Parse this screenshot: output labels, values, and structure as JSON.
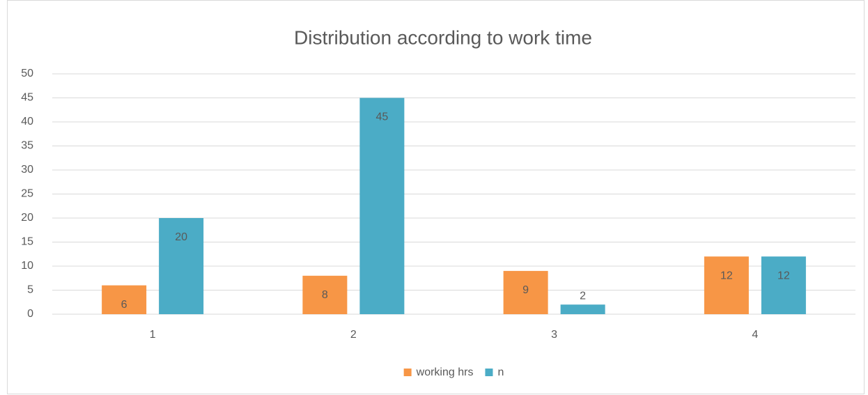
{
  "chart_data": {
    "type": "bar",
    "title": "Distribution according to work time",
    "categories": [
      "1",
      "2",
      "3",
      "4"
    ],
    "series": [
      {
        "name": "working hrs",
        "color": "#f79646",
        "values": [
          6,
          8,
          9,
          12
        ]
      },
      {
        "name": "n",
        "color": "#4bacc6",
        "values": [
          20,
          45,
          2,
          12
        ]
      }
    ],
    "ylim": [
      0,
      50
    ],
    "yticks": [
      0,
      5,
      10,
      15,
      20,
      25,
      30,
      35,
      40,
      45,
      50
    ],
    "grid": true,
    "legend": "bottom"
  }
}
